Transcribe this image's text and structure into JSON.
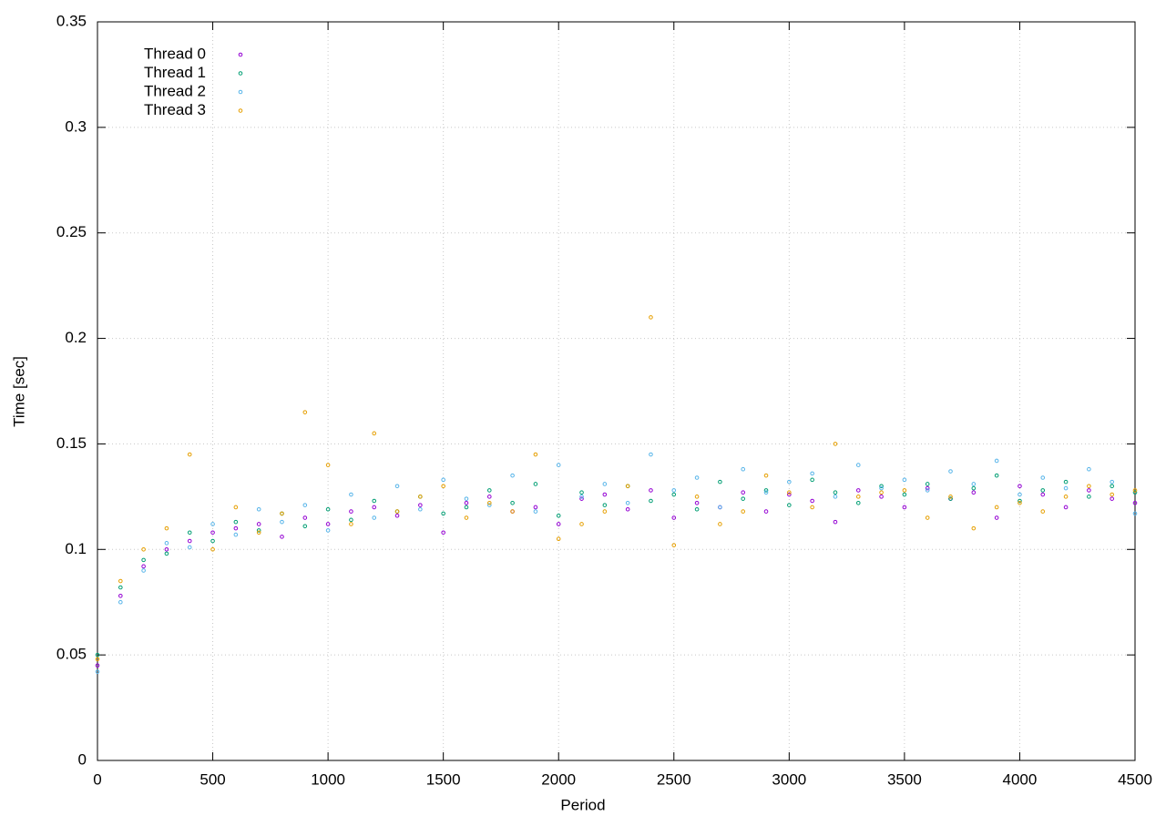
{
  "chart_data": {
    "type": "scatter",
    "x_label": "Period",
    "y_label": "Time [sec]",
    "x": [
      0,
      100,
      200,
      300,
      400,
      500,
      600,
      700,
      800,
      900,
      1000,
      1100,
      1200,
      1300,
      1400,
      1500,
      1600,
      1700,
      1800,
      1900,
      2000,
      2100,
      2200,
      2300,
      2400,
      2500,
      2600,
      2700,
      2800,
      2900,
      3000,
      3100,
      3200,
      3300,
      3400,
      3500,
      3600,
      3700,
      3800,
      3900,
      4000,
      4100,
      4200,
      4300,
      4400,
      4500
    ],
    "series": [
      {
        "name": "Thread 0",
        "color": "#9400d3",
        "values": [
          0.045,
          0.078,
          0.092,
          0.1,
          0.104,
          0.108,
          0.11,
          0.112,
          0.106,
          0.115,
          0.112,
          0.118,
          0.12,
          0.116,
          0.121,
          0.108,
          0.122,
          0.125,
          0.118,
          0.12,
          0.112,
          0.124,
          0.126,
          0.119,
          0.128,
          0.115,
          0.122,
          0.12,
          0.127,
          0.118,
          0.126,
          0.123,
          0.113,
          0.128,
          0.125,
          0.12,
          0.129,
          0.124,
          0.127,
          0.115,
          0.13,
          0.126,
          0.12,
          0.128,
          0.124,
          0.122
        ]
      },
      {
        "name": "Thread 1",
        "color": "#009e73",
        "values": [
          0.05,
          0.082,
          0.095,
          0.098,
          0.108,
          0.104,
          0.113,
          0.109,
          0.117,
          0.111,
          0.119,
          0.114,
          0.123,
          0.118,
          0.125,
          0.117,
          0.12,
          0.128,
          0.122,
          0.131,
          0.116,
          0.127,
          0.121,
          0.13,
          0.123,
          0.126,
          0.119,
          0.132,
          0.124,
          0.128,
          0.121,
          0.133,
          0.127,
          0.122,
          0.13,
          0.126,
          0.131,
          0.124,
          0.129,
          0.135,
          0.123,
          0.128,
          0.132,
          0.125,
          0.13,
          0.127
        ]
      },
      {
        "name": "Thread 2",
        "color": "#56b4e9",
        "values": [
          0.042,
          0.075,
          0.09,
          0.103,
          0.101,
          0.112,
          0.107,
          0.119,
          0.113,
          0.121,
          0.109,
          0.126,
          0.115,
          0.13,
          0.119,
          0.133,
          0.124,
          0.121,
          0.135,
          0.118,
          0.14,
          0.125,
          0.131,
          0.122,
          0.145,
          0.128,
          0.134,
          0.12,
          0.138,
          0.127,
          0.132,
          0.136,
          0.125,
          0.14,
          0.129,
          0.133,
          0.128,
          0.137,
          0.131,
          0.142,
          0.126,
          0.134,
          0.129,
          0.138,
          0.132,
          0.117
        ]
      },
      {
        "name": "Thread 3",
        "color": "#e69f00",
        "values": [
          0.048,
          0.085,
          0.1,
          0.11,
          0.145,
          0.1,
          0.12,
          0.108,
          0.117,
          0.165,
          0.14,
          0.112,
          0.155,
          0.118,
          0.125,
          0.13,
          0.115,
          0.122,
          0.118,
          0.145,
          0.105,
          0.112,
          0.118,
          0.13,
          0.21,
          0.102,
          0.125,
          0.112,
          0.118,
          0.135,
          0.127,
          0.12,
          0.15,
          0.125,
          0.127,
          0.128,
          0.115,
          0.125,
          0.11,
          0.12,
          0.122,
          0.118,
          0.125,
          0.13,
          0.126,
          0.128
        ]
      }
    ],
    "xlim": [
      0,
      4500
    ],
    "xticks": [
      0,
      500,
      1000,
      1500,
      2000,
      2500,
      3000,
      3500,
      4000,
      4500
    ],
    "ylim": [
      0,
      0.35
    ],
    "yticks": [
      0,
      0.05,
      0.1,
      0.15,
      0.2,
      0.25,
      0.3,
      0.35
    ],
    "grid": true,
    "legend": "top-left"
  }
}
